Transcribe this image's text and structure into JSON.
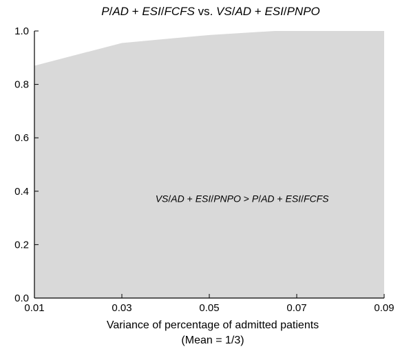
{
  "chart_data": {
    "type": "area",
    "title": "P/AD + ESI/FCFS vs. VS/AD + ESI/PNPO",
    "title_runs": [
      {
        "text": "P",
        "italic": true
      },
      {
        "text": "/",
        "italic": false
      },
      {
        "text": "AD",
        "italic": true
      },
      {
        "text": " + ",
        "italic": false
      },
      {
        "text": "ESI",
        "italic": true
      },
      {
        "text": "/",
        "italic": false
      },
      {
        "text": "FCFS",
        "italic": true
      },
      {
        "text": " vs. ",
        "italic": false
      },
      {
        "text": "VS",
        "italic": true
      },
      {
        "text": "/",
        "italic": false
      },
      {
        "text": "AD",
        "italic": true
      },
      {
        "text": " + ",
        "italic": false
      },
      {
        "text": "ESI",
        "italic": true
      },
      {
        "text": "/",
        "italic": false
      },
      {
        "text": "PNPO",
        "italic": true
      }
    ],
    "xlabel_line1": "Variance of percentage of admitted patients",
    "xlabel_line2": "(Mean = 1/3)",
    "ylabel": "",
    "xlim": [
      0.01,
      0.09
    ],
    "ylim": [
      0.0,
      1.0
    ],
    "xticks": [
      "0.01",
      "0.03",
      "0.05",
      "0.07",
      "0.09"
    ],
    "yticks": [
      "0.0",
      "0.2",
      "0.4",
      "0.6",
      "0.8",
      "1.0"
    ],
    "series": [
      {
        "region": "VS/AD + ESI/PNPO > P/AD + ESI/FCFS",
        "fill": "#d9d9d9",
        "x": [
          0.01,
          0.03,
          0.05,
          0.065,
          0.09
        ],
        "y": [
          0.87,
          0.955,
          0.985,
          1.0,
          1.0
        ]
      }
    ],
    "annotation": "VS/AD + ESI/PNPO > P/AD + ESI/FCFS",
    "annotation_runs": [
      {
        "text": "VS",
        "italic": true
      },
      {
        "text": "/",
        "italic": false
      },
      {
        "text": "AD",
        "italic": true
      },
      {
        "text": " + ",
        "italic": false
      },
      {
        "text": "ESI",
        "italic": true
      },
      {
        "text": "/",
        "italic": false
      },
      {
        "text": "PNPO",
        "italic": true
      },
      {
        "text": " > ",
        "italic": false
      },
      {
        "text": "P",
        "italic": true
      },
      {
        "text": "/",
        "italic": false
      },
      {
        "text": "AD",
        "italic": true
      },
      {
        "text": " + ",
        "italic": false
      },
      {
        "text": "ESI",
        "italic": true
      },
      {
        "text": "/",
        "italic": false
      },
      {
        "text": "FCFS",
        "italic": true
      }
    ],
    "annotation_anchor": {
      "x": 0.0575,
      "y": 0.36
    },
    "grid": false,
    "legend": "none"
  }
}
